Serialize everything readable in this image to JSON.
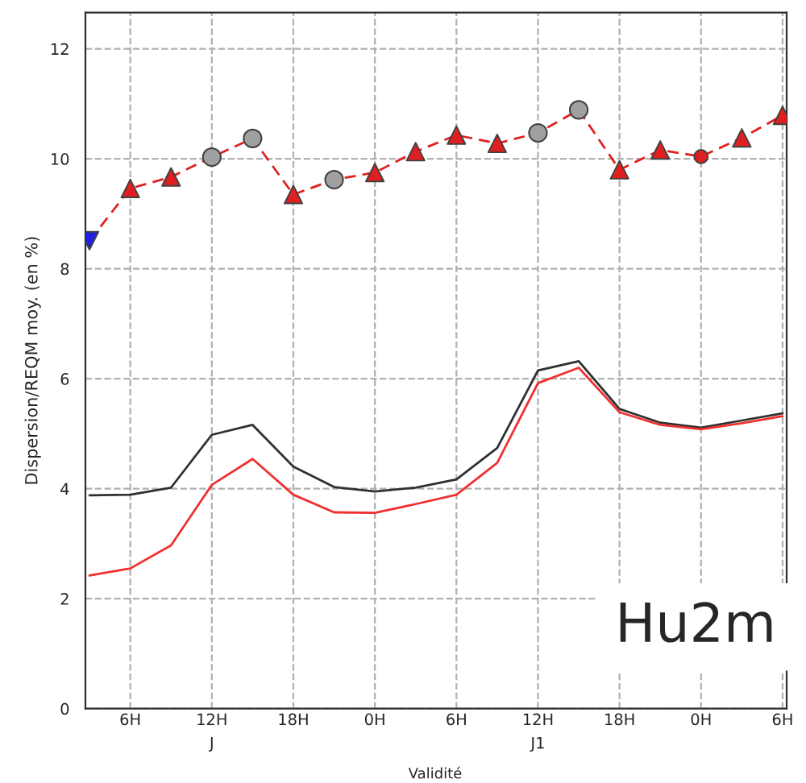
{
  "chart_data": {
    "type": "line",
    "xlabel": "Validité",
    "ylabel": "Dispersion/REQM moy. (en %)",
    "categories": [
      null,
      "6H",
      null,
      "12H\nJ",
      null,
      "18H",
      null,
      "0H",
      null,
      "6H",
      null,
      "12H\nJ1",
      null,
      "18H",
      null,
      "0H",
      null,
      "6H"
    ],
    "series": [
      {
        "type": "line",
        "color": "#e02020",
        "line_style": "dashed",
        "marker": "none",
        "values": [
          8.51,
          9.46,
          9.67,
          10.03,
          10.37,
          9.35,
          9.62,
          9.75,
          10.13,
          10.43,
          10.28,
          10.47,
          10.89,
          9.8,
          10.16,
          10.04,
          10.38,
          10.79
        ]
      },
      {
        "type": "scatter",
        "color": "#e02020",
        "marker": "triangle",
        "values": [
          null,
          9.46,
          9.67,
          null,
          null,
          9.35,
          null,
          9.75,
          10.13,
          10.43,
          10.28,
          null,
          null,
          9.8,
          10.16,
          null,
          10.38,
          10.79
        ]
      },
      {
        "type": "scatter",
        "color": "#a0a0a0",
        "marker": "circle",
        "values": [
          null,
          null,
          null,
          10.03,
          10.37,
          null,
          9.62,
          null,
          null,
          null,
          null,
          10.47,
          10.89,
          null,
          null,
          null,
          null,
          null
        ]
      },
      {
        "type": "scatter",
        "color": "#2020e0",
        "marker": "triangle_down",
        "values": [
          8.51,
          null,
          null,
          null,
          null,
          null,
          null,
          null,
          null,
          null,
          null,
          null,
          null,
          null,
          null,
          null,
          null,
          null
        ]
      },
      {
        "type": "scatter",
        "color": "#e02020",
        "marker": "small_circle",
        "values": [
          null,
          null,
          null,
          null,
          null,
          null,
          null,
          null,
          null,
          null,
          null,
          null,
          null,
          null,
          null,
          10.04,
          null,
          null
        ]
      },
      {
        "color": "#303030",
        "line_style": "solid",
        "marker": "none",
        "values": [
          3.88,
          3.89,
          4.02,
          4.98,
          5.16,
          4.4,
          4.03,
          3.95,
          4.02,
          4.17,
          4.74,
          6.15,
          6.32,
          5.45,
          5.2,
          5.11,
          5.24,
          5.37
        ]
      },
      {
        "color": "#f03030",
        "line_style": "solid",
        "marker": "none",
        "values": [
          2.42,
          2.55,
          2.97,
          4.07,
          4.54,
          3.89,
          3.57,
          3.56,
          3.72,
          3.89,
          4.47,
          5.92,
          6.2,
          5.39,
          5.16,
          5.08,
          5.19,
          5.32
        ]
      }
    ],
    "ylim": [
      0,
      12.66
    ],
    "yticks": [
      0,
      2,
      4,
      6,
      8,
      10,
      12
    ],
    "grid": true,
    "annotations": [
      "Hu2m"
    ]
  }
}
